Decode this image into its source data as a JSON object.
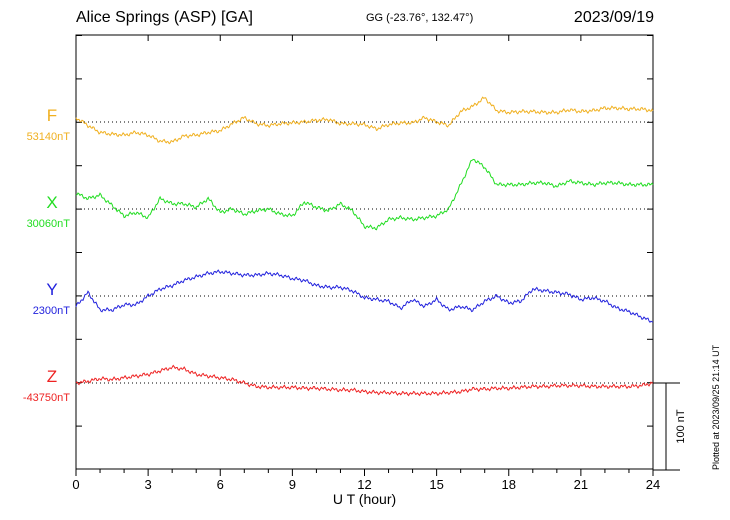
{
  "header": {
    "station": "Alice Springs (ASP)  [GA]",
    "coords": "GG (-23.76°, 132.47°)",
    "date": "2023/09/19"
  },
  "footer": {
    "plotted": "Plotted at 2023/09/25 21:14 UT"
  },
  "chart_data": {
    "type": "line",
    "xlabel": "U T (hour)",
    "x_ticks": [
      "0",
      "3",
      "6",
      "9",
      "12",
      "15",
      "18",
      "21",
      "24"
    ],
    "xlim": [
      0,
      24
    ],
    "scale_bar_label": "100 nT",
    "units": "nT",
    "series": [
      {
        "name": "F",
        "baseline_label": "53140nT",
        "color": "#f0b020",
        "baseline": 53140,
        "x": [
          0,
          0.5,
          1,
          1.5,
          2,
          2.5,
          3,
          3.5,
          4,
          4.5,
          5,
          5.5,
          6,
          6.5,
          7,
          7.5,
          8,
          8.5,
          9,
          9.5,
          10,
          10.5,
          11,
          11.5,
          12,
          12.5,
          13,
          13.5,
          14,
          14.5,
          15,
          15.5,
          16,
          16.5,
          17,
          17.5,
          18,
          18.5,
          19,
          19.5,
          20,
          20.5,
          21,
          21.5,
          22,
          22.5,
          23,
          23.5,
          24
        ],
        "values": [
          5,
          -4,
          -12,
          -14,
          -15,
          -12,
          -15,
          -22,
          -23,
          -16,
          -15,
          -12,
          -10,
          -2,
          5,
          -2,
          -4,
          -2,
          -1,
          0,
          2,
          3,
          -2,
          -2,
          -3,
          -8,
          -3,
          -1,
          -1,
          5,
          0,
          -4,
          12,
          18,
          28,
          13,
          11,
          12,
          12,
          11,
          11,
          14,
          12,
          13,
          16,
          16,
          15,
          15,
          13
        ]
      },
      {
        "name": "X",
        "baseline_label": "30060nT",
        "color": "#22dd22",
        "baseline": 30060,
        "x": [
          0,
          0.5,
          1,
          1.5,
          2,
          2.5,
          3,
          3.5,
          4,
          4.5,
          5,
          5.5,
          6,
          6.5,
          7,
          7.5,
          8,
          8.5,
          9,
          9.5,
          10,
          10.5,
          11,
          11.5,
          12,
          12.5,
          13,
          13.5,
          14,
          14.5,
          15,
          15.5,
          16,
          16.5,
          17,
          17.5,
          18,
          18.5,
          19,
          19.5,
          20,
          20.5,
          21,
          21.5,
          22,
          22.5,
          23,
          23.5,
          24
        ],
        "values": [
          18,
          12,
          16,
          4,
          -8,
          -4,
          -10,
          12,
          6,
          6,
          2,
          12,
          -4,
          0,
          -6,
          -2,
          0,
          -6,
          -8,
          8,
          2,
          -2,
          6,
          -2,
          -20,
          -22,
          -12,
          -10,
          -12,
          -10,
          -8,
          0,
          28,
          58,
          48,
          28,
          28,
          28,
          30,
          30,
          26,
          32,
          30,
          28,
          30,
          30,
          28,
          28,
          28
        ]
      },
      {
        "name": "Y",
        "baseline_label": "2300nT",
        "color": "#2222dd",
        "baseline": 2300,
        "x": [
          0,
          0.5,
          1,
          1.5,
          2,
          2.5,
          3,
          3.5,
          4,
          4.5,
          5,
          5.5,
          6,
          6.5,
          7,
          7.5,
          8,
          8.5,
          9,
          9.5,
          10,
          10.5,
          11,
          11.5,
          12,
          12.5,
          13,
          13.5,
          14,
          14.5,
          15,
          15.5,
          16,
          16.5,
          17,
          17.5,
          18,
          18.5,
          19,
          19.5,
          20,
          20.5,
          21,
          21.5,
          22,
          22.5,
          23,
          23.5,
          24
        ],
        "values": [
          -12,
          4,
          -16,
          -16,
          -10,
          -10,
          0,
          8,
          12,
          18,
          22,
          26,
          28,
          26,
          24,
          24,
          26,
          24,
          20,
          18,
          12,
          10,
          10,
          6,
          -2,
          -4,
          -6,
          -14,
          -4,
          -12,
          -4,
          -16,
          -12,
          -16,
          -6,
          0,
          -8,
          -6,
          8,
          6,
          4,
          2,
          -4,
          -2,
          -6,
          -14,
          -18,
          -24,
          -30
        ]
      },
      {
        "name": "Z",
        "baseline_label": "-43750nT",
        "color": "#ee2222",
        "baseline": -43750,
        "x": [
          0,
          0.5,
          1,
          1.5,
          2,
          2.5,
          3,
          3.5,
          4,
          4.5,
          5,
          5.5,
          6,
          6.5,
          7,
          7.5,
          8,
          8.5,
          9,
          9.5,
          10,
          10.5,
          11,
          11.5,
          12,
          12.5,
          13,
          13.5,
          14,
          14.5,
          15,
          15.5,
          16,
          16.5,
          17,
          17.5,
          18,
          18.5,
          19,
          19.5,
          20,
          20.5,
          21,
          21.5,
          22,
          22.5,
          23,
          23.5,
          24
        ],
        "values": [
          0,
          2,
          5,
          4,
          6,
          8,
          10,
          14,
          18,
          16,
          10,
          8,
          6,
          4,
          0,
          -4,
          -5,
          -5,
          -5,
          -6,
          -6,
          -7,
          -8,
          -8,
          -10,
          -11,
          -11,
          -12,
          -12,
          -12,
          -12,
          -11,
          -10,
          -7,
          -7,
          -6,
          -6,
          -5,
          -4,
          -4,
          -3,
          -3,
          -3,
          -4,
          -4,
          -4,
          -4,
          -3,
          0
        ]
      }
    ]
  }
}
